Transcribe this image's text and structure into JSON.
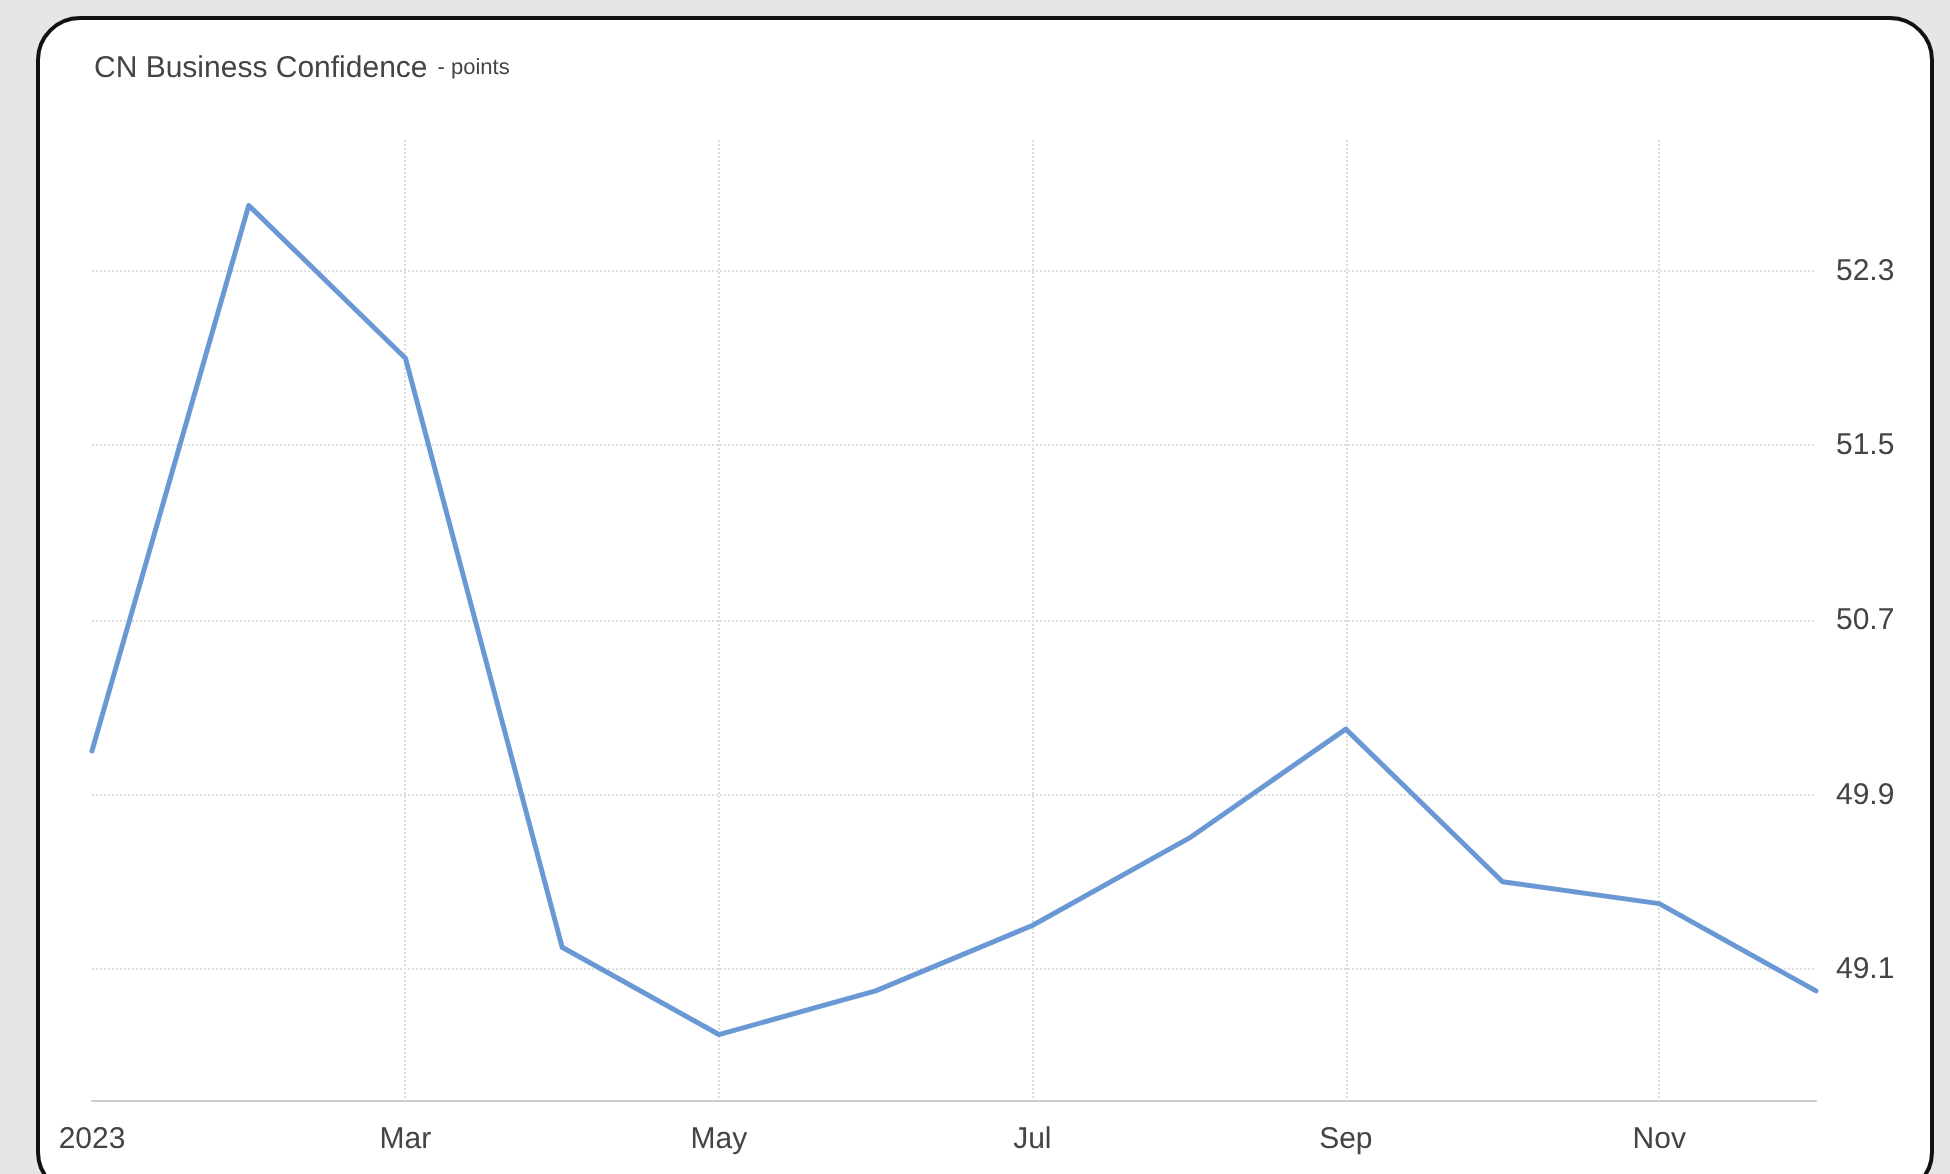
{
  "chart_data": {
    "type": "line",
    "title": "CN Business Confidence",
    "subtitle": "- points",
    "categories": [
      "2023",
      null,
      "Mar",
      null,
      "May",
      null,
      "Jul",
      null,
      "Sep",
      null,
      "Nov",
      null
    ],
    "series": [
      {
        "color": "#6a98d4",
        "values": [
          50.1,
          52.6,
          51.9,
          49.2,
          48.8,
          49.0,
          49.3,
          49.7,
          50.2,
          49.5,
          49.4,
          49.0
        ]
      }
    ],
    "ylim": [
      48.5,
      52.9
    ],
    "yticks": [
      49.1,
      49.9,
      50.7,
      51.5,
      52.3
    ],
    "grid": true,
    "marker": "none",
    "line_style": "solid"
  }
}
